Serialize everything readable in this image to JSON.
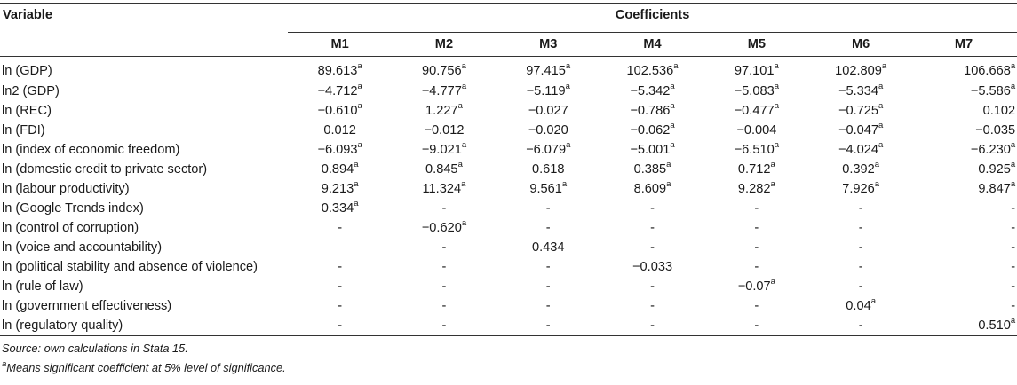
{
  "header": {
    "variable": "Variable",
    "coefficients": "Coefficients",
    "models": [
      "M1",
      "M2",
      "M3",
      "M4",
      "M5",
      "M6",
      "M7"
    ]
  },
  "rows": [
    {
      "label": "ln (GDP)",
      "cells": [
        [
          "89.613",
          "a"
        ],
        [
          "90.756",
          "a"
        ],
        [
          "97.415",
          "a"
        ],
        [
          "102.536",
          "a"
        ],
        [
          "97.101",
          "a"
        ],
        [
          "102.809",
          "a"
        ],
        [
          "106.668",
          "a"
        ]
      ]
    },
    {
      "label": "ln2 (GDP)",
      "cells": [
        [
          "−4.712",
          "a"
        ],
        [
          "−4.777",
          "a"
        ],
        [
          "−5.119",
          "a"
        ],
        [
          "−5.342",
          "a"
        ],
        [
          "−5.083",
          "a"
        ],
        [
          "−5.334",
          "a"
        ],
        [
          "−5.586",
          "a"
        ]
      ]
    },
    {
      "label": "ln (REC)",
      "cells": [
        [
          "−0.610",
          "a"
        ],
        [
          "1.227",
          "a"
        ],
        [
          "−0.027",
          ""
        ],
        [
          "−0.786",
          "a"
        ],
        [
          "−0.477",
          "a"
        ],
        [
          "−0.725",
          "a"
        ],
        [
          "0.102",
          ""
        ]
      ]
    },
    {
      "label": "ln (FDI)",
      "cells": [
        [
          "0.012",
          ""
        ],
        [
          "−0.012",
          ""
        ],
        [
          "−0.020",
          ""
        ],
        [
          "−0.062",
          "a"
        ],
        [
          "−0.004",
          ""
        ],
        [
          "−0.047",
          "a"
        ],
        [
          "−0.035",
          ""
        ]
      ]
    },
    {
      "label": "ln (index of economic freedom)",
      "cells": [
        [
          "−6.093",
          "a"
        ],
        [
          "−9.021",
          "a"
        ],
        [
          "−6.079",
          "a"
        ],
        [
          "−5.001",
          "a"
        ],
        [
          "−6.510",
          "a"
        ],
        [
          "−4.024",
          "a"
        ],
        [
          "−6.230",
          "a"
        ]
      ]
    },
    {
      "label": "ln (domestic credit to private sector)",
      "cells": [
        [
          "0.894",
          "a"
        ],
        [
          "0.845",
          "a"
        ],
        [
          "0.618",
          ""
        ],
        [
          "0.385",
          "a"
        ],
        [
          "0.712",
          "a"
        ],
        [
          "0.392",
          "a"
        ],
        [
          "0.925",
          "a"
        ]
      ]
    },
    {
      "label": "ln (labour productivity)",
      "cells": [
        [
          "9.213",
          "a"
        ],
        [
          "11.324",
          "a"
        ],
        [
          "9.561",
          "a"
        ],
        [
          "8.609",
          "a"
        ],
        [
          "9.282",
          "a"
        ],
        [
          "7.926",
          "a"
        ],
        [
          "9.847",
          "a"
        ]
      ]
    },
    {
      "label": "ln (Google Trends index)",
      "cells": [
        [
          "0.334",
          "a"
        ],
        [
          "-",
          ""
        ],
        [
          "-",
          ""
        ],
        [
          "-",
          ""
        ],
        [
          "-",
          ""
        ],
        [
          "-",
          ""
        ],
        [
          "-",
          ""
        ]
      ]
    },
    {
      "label": "ln (control of corruption)",
      "cells": [
        [
          "-",
          ""
        ],
        [
          "−0.620",
          "a"
        ],
        [
          "-",
          ""
        ],
        [
          "-",
          ""
        ],
        [
          "-",
          ""
        ],
        [
          "-",
          ""
        ],
        [
          "-",
          ""
        ]
      ]
    },
    {
      "label": "ln (voice and accountability)",
      "cells": [
        [
          "",
          ""
        ],
        [
          "-",
          ""
        ],
        [
          "0.434",
          ""
        ],
        [
          "-",
          ""
        ],
        [
          "-",
          ""
        ],
        [
          "-",
          ""
        ],
        [
          "-",
          ""
        ]
      ]
    },
    {
      "label": "ln (political stability and absence of violence)",
      "cells": [
        [
          "-",
          ""
        ],
        [
          "-",
          ""
        ],
        [
          "-",
          ""
        ],
        [
          "−0.033",
          ""
        ],
        [
          "-",
          ""
        ],
        [
          "-",
          ""
        ],
        [
          "-",
          ""
        ]
      ]
    },
    {
      "label": "ln (rule of law)",
      "cells": [
        [
          "-",
          ""
        ],
        [
          "-",
          ""
        ],
        [
          "-",
          ""
        ],
        [
          "-",
          ""
        ],
        [
          "−0.07",
          "a"
        ],
        [
          "-",
          ""
        ],
        [
          "-",
          ""
        ]
      ]
    },
    {
      "label": "ln (government effectiveness)",
      "cells": [
        [
          "-",
          ""
        ],
        [
          "-",
          ""
        ],
        [
          "-",
          ""
        ],
        [
          "-",
          ""
        ],
        [
          "-",
          ""
        ],
        [
          "0.04",
          "a"
        ],
        [
          "-",
          ""
        ]
      ]
    },
    {
      "label": "ln (regulatory quality)",
      "cells": [
        [
          "-",
          ""
        ],
        [
          "-",
          ""
        ],
        [
          "-",
          ""
        ],
        [
          "-",
          ""
        ],
        [
          "-",
          ""
        ],
        [
          "-",
          ""
        ],
        [
          "0.510",
          "a"
        ]
      ]
    }
  ],
  "notes": {
    "source": "Source: own calculations in Stata 15.",
    "footnote_mark": "a",
    "footnote_text": "Means significant coefficient at 5% level of significance."
  }
}
